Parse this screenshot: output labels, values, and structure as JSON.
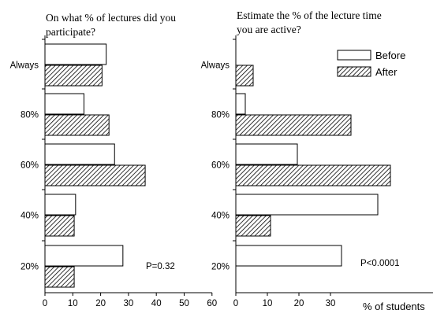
{
  "chart_data": [
    {
      "type": "bar",
      "orientation": "horizontal",
      "title_lines": [
        "On what % of lectures did you",
        "participate?"
      ],
      "categories": [
        "Always",
        "80%",
        "60%",
        "40%",
        "20%"
      ],
      "series": [
        {
          "name": "Before",
          "values": [
            22,
            14,
            25,
            11,
            28
          ]
        },
        {
          "name": "After",
          "values": [
            20.5,
            23,
            36,
            10.5,
            10.5
          ]
        }
      ],
      "x_ticks": [
        "0",
        "10",
        "20",
        "30",
        "40",
        "50",
        "60"
      ],
      "xlim": [
        0,
        60
      ],
      "annotation": "P=0.32",
      "xlabel": ""
    },
    {
      "type": "bar",
      "orientation": "horizontal",
      "title_lines": [
        "Estimate the % of the lecture time",
        "you are active?"
      ],
      "categories": [
        "Always",
        "80%",
        "60%",
        "40%",
        "20%"
      ],
      "series": [
        {
          "name": "Before",
          "values": [
            0,
            3,
            19.5,
            45,
            33.5
          ]
        },
        {
          "name": "After",
          "values": [
            5.5,
            36.5,
            49,
            11,
            0
          ]
        }
      ],
      "x_ticks": [
        "0",
        "10",
        "20",
        "30"
      ],
      "xlim": [
        0,
        60
      ],
      "annotation": "P<0.0001",
      "xlabel": "% of students",
      "legend": {
        "position": "top-right",
        "entries": [
          "Before",
          "After"
        ]
      }
    }
  ],
  "colors": {
    "before_fill": "#ffffff",
    "after_hatch": "#000000",
    "stroke": "#000000"
  }
}
